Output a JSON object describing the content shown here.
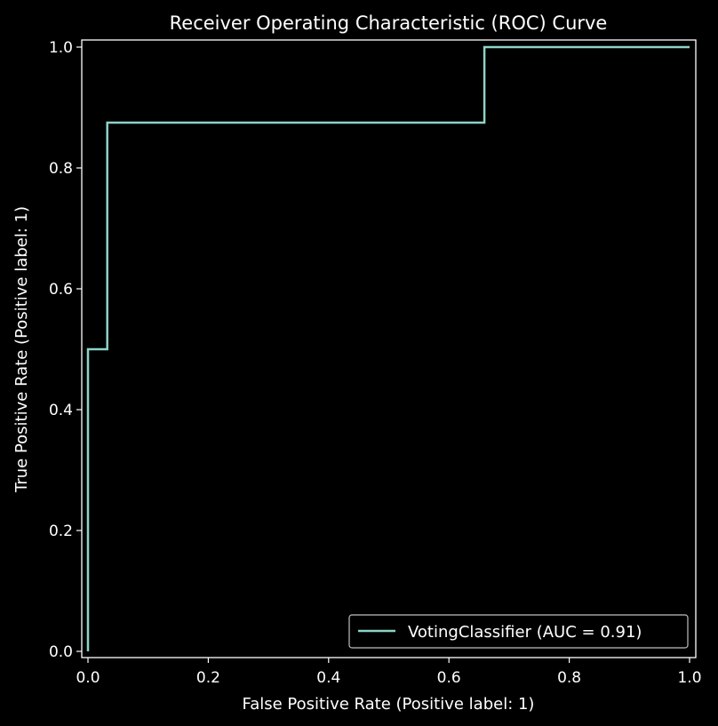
{
  "chart_data": {
    "type": "line",
    "title": "Receiver Operating Characteristic (ROC) Curve",
    "xlabel": "False Positive Rate (Positive label: 1)",
    "ylabel": "True Positive Rate (Positive label: 1)",
    "xlim": [
      0.0,
      1.0
    ],
    "ylim": [
      0.0,
      1.0
    ],
    "xticks": [
      "0.0",
      "0.2",
      "0.4",
      "0.6",
      "0.8",
      "1.0"
    ],
    "yticks": [
      "0.0",
      "0.2",
      "0.4",
      "0.6",
      "0.8",
      "1.0"
    ],
    "grid": false,
    "legend_position": "lower-right",
    "series": [
      {
        "name": "VotingClassifier (AUC = 0.91)",
        "color": "#8dd3c7",
        "step": true,
        "x": [
          0.0,
          0.0,
          0.0,
          0.032,
          0.032,
          0.659,
          0.659,
          1.0
        ],
        "y": [
          0.0,
          0.5,
          0.5,
          0.5,
          0.875,
          0.875,
          1.0,
          1.0
        ]
      }
    ],
    "colors": {
      "background": "#000000",
      "axes": "#ffffff",
      "text": "#ffffff",
      "legend_edge": "#bfbfbf"
    }
  }
}
